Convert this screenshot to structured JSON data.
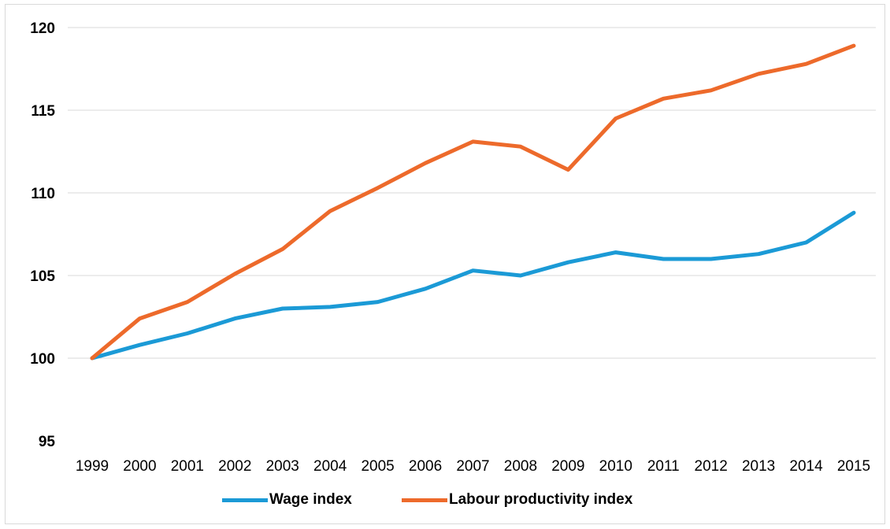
{
  "chart_data": {
    "type": "line",
    "title": "",
    "xlabel": "",
    "ylabel": "",
    "ylim": [
      95,
      120
    ],
    "yticks": [
      "95",
      "100",
      "105",
      "110",
      "115",
      "120"
    ],
    "grid": true,
    "legend_position": "bottom",
    "categories": [
      "1999",
      "2000",
      "2001",
      "2002",
      "2003",
      "2004",
      "2005",
      "2006",
      "2007",
      "2008",
      "2009",
      "2010",
      "2011",
      "2012",
      "2013",
      "2014",
      "2015"
    ],
    "series": [
      {
        "name": "Wage index",
        "color": "#1b9ad6",
        "values": [
          100,
          100.8,
          101.5,
          102.4,
          103.0,
          103.1,
          103.4,
          104.2,
          105.3,
          105.0,
          105.8,
          106.4,
          106.0,
          106.0,
          106.3,
          107.0,
          108.8
        ]
      },
      {
        "name": "Labour productivity index",
        "color": "#ed6a2b",
        "values": [
          100,
          102.4,
          103.4,
          105.1,
          106.6,
          108.9,
          110.3,
          111.8,
          113.1,
          112.8,
          111.4,
          114.5,
          115.7,
          116.2,
          117.2,
          117.8,
          118.9
        ]
      }
    ]
  }
}
